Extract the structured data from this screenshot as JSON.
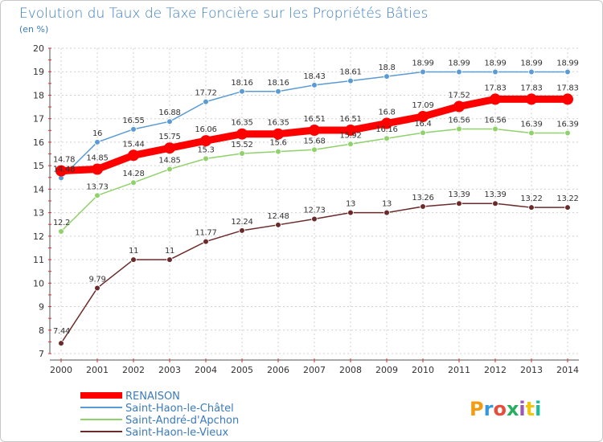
{
  "chart_data": {
    "type": "line",
    "title": "Evolution du Taux de Taxe Foncière sur les Propriétés Bâties",
    "subtitle": "(en %)",
    "xlabel": "",
    "ylabel": "",
    "ylim": [
      7,
      20
    ],
    "yticks": [
      "7",
      "8",
      "9",
      "10",
      "11",
      "12",
      "13",
      "14",
      "15",
      "16",
      "17",
      "18",
      "19",
      "20"
    ],
    "categories": [
      "2000",
      "2001",
      "2002",
      "2003",
      "2004",
      "2005",
      "2006",
      "2007",
      "2008",
      "2009",
      "2010",
      "2011",
      "2012",
      "2013",
      "2014"
    ],
    "grid": true,
    "legend_position": "bottom-left",
    "series": [
      {
        "name": "RENAISON",
        "color": "#ff0000",
        "values": [
          14.78,
          14.85,
          15.44,
          15.75,
          16.06,
          16.35,
          16.35,
          16.51,
          16.51,
          16.8,
          17.09,
          17.52,
          17.83,
          17.83,
          17.83
        ],
        "labels": [
          "14.78",
          "14.85",
          "15.44",
          "15.75",
          "16.06",
          "16.35",
          "16.35",
          "16.51",
          "16.51",
          "16.8",
          "17.09",
          "17.52",
          "17.83",
          "17.83",
          "17.83"
        ]
      },
      {
        "name": "Saint-Haon-le-Châtel",
        "color": "#5b9bd5",
        "values": [
          14.48,
          16,
          16.55,
          16.88,
          17.72,
          18.16,
          18.16,
          18.43,
          18.61,
          18.8,
          18.99,
          18.99,
          18.99,
          18.99,
          18.99
        ],
        "labels": [
          "14.48",
          "16",
          "16.55",
          "16.88",
          "17.72",
          "18.16",
          "18.16",
          "18.43",
          "18.61",
          "18.8",
          "18.99",
          "18.99",
          "18.99",
          "18.99",
          "18.99"
        ]
      },
      {
        "name": "Saint-André-d'Apchon",
        "color": "#8fd16a",
        "values": [
          12.2,
          13.73,
          14.28,
          14.85,
          15.3,
          15.52,
          15.6,
          15.68,
          15.92,
          16.16,
          16.4,
          16.56,
          16.56,
          16.39,
          16.39
        ],
        "labels": [
          "12.2",
          "13.73",
          "14.28",
          "14.85",
          "15.3",
          "15.52",
          "15.6",
          "15.68",
          "15.92",
          "16.16",
          "16.4",
          "16.56",
          "16.56",
          "16.39",
          "16.39"
        ]
      },
      {
        "name": "Saint-Haon-le-Vieux",
        "color": "#6b2a2a",
        "values": [
          7.44,
          9.79,
          11,
          11,
          11.77,
          12.24,
          12.48,
          12.73,
          13,
          13,
          13.26,
          13.39,
          13.39,
          13.22,
          13.22
        ],
        "labels": [
          "7.44",
          "9.79",
          "11",
          "11",
          "11.77",
          "12.24",
          "12.48",
          "12.73",
          "13",
          "13",
          "13.26",
          "13.39",
          "13.39",
          "13.22",
          "13.22"
        ]
      }
    ]
  },
  "logo": {
    "letters": [
      "P",
      "r",
      "o",
      "x",
      "i",
      "t",
      "i"
    ],
    "colors": [
      "#f39c12",
      "#3498db",
      "#e74c3c",
      "#27ae60",
      "#9b59b6",
      "#f1c40f",
      "#1abc9c"
    ]
  }
}
